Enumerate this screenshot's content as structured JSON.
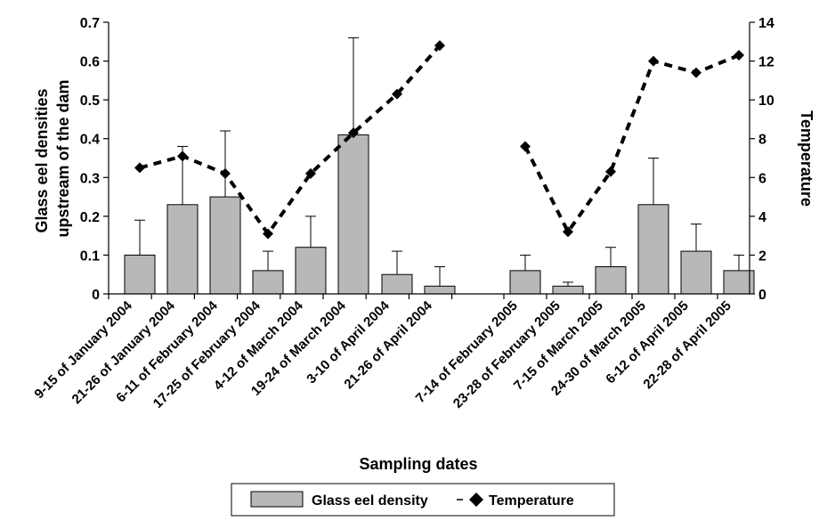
{
  "chart_data": {
    "type": "bar",
    "categories": [
      "9-15 of January 2004",
      "21-26 of January 2004",
      "6-11 of February 2004",
      "17-25 of February 2004",
      "4-12 of March 2004",
      "19-24 of March 2004",
      "3-10 of April 2004",
      "21-26 of April 2004",
      "7-14 of February 2005",
      "23-28 of February 2005",
      "7-15 of March 2005",
      "24-30 of March 2005",
      "6-12 of April 2005",
      "22-28 of April 2005"
    ],
    "series": [
      {
        "name": "Glass eel density",
        "type": "bar",
        "axis": "left",
        "values": [
          0.1,
          0.23,
          0.25,
          0.06,
          0.12,
          0.41,
          0.05,
          0.02,
          0.06,
          0.02,
          0.07,
          0.23,
          0.11,
          0.06
        ],
        "error_upper": [
          0.19,
          0.38,
          0.42,
          0.11,
          0.2,
          0.66,
          0.11,
          0.07,
          0.1,
          0.03,
          0.12,
          0.35,
          0.18,
          0.1
        ],
        "color": "#b8b8b8"
      },
      {
        "name": "Temperature",
        "type": "line",
        "axis": "right",
        "values": [
          6.5,
          7.1,
          6.2,
          3.1,
          6.2,
          8.3,
          10.3,
          12.8,
          7.6,
          3.2,
          6.3,
          12.0,
          11.4,
          12.3
        ],
        "line_style": "dashed",
        "marker": "diamond",
        "color": "#000000"
      }
    ],
    "gap_after_index": 7,
    "xlabel": "Sampling dates",
    "ylabel": "Glass eel densities upstream of the dam",
    "ylabel_right": "Temperature",
    "ylim": [
      0,
      0.7
    ],
    "ylim_right": [
      0,
      14
    ],
    "yticks": [
      "0",
      "0.1",
      "0.2",
      "0.3",
      "0.4",
      "0.5",
      "0.6",
      "0.7"
    ],
    "yticks_right": [
      "0",
      "2",
      "4",
      "6",
      "8",
      "10",
      "12",
      "14"
    ],
    "grid": false,
    "legend_position": "bottom"
  }
}
